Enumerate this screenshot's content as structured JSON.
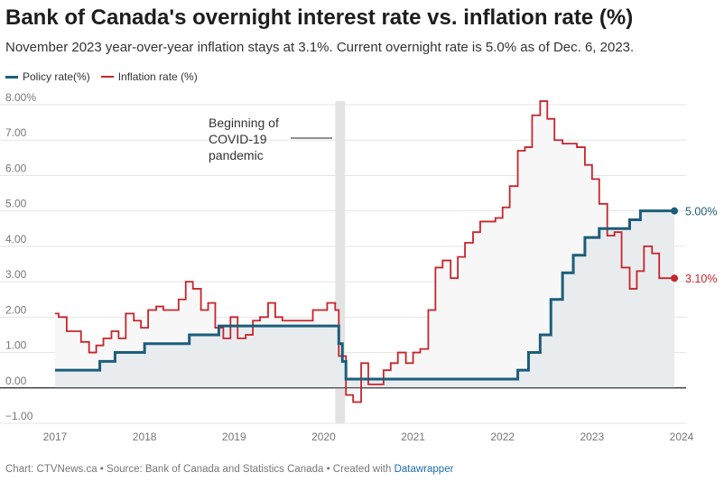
{
  "title": "Bank of Canada's overnight interest rate vs. inflation rate (%)",
  "subtitle": "November 2023 year-over-year inflation stays at 3.1%. Current overnight rate is 5.0% as of Dec. 6, 2023.",
  "footer": {
    "prefix": "Chart: CTVNews.ca • Source: Bank of Canada and Statistics Canada • Created with ",
    "credit": "Datawrapper"
  },
  "colors": {
    "policy": "#1b5e7a",
    "inflation": "#c8242b",
    "area": "#e9ecef",
    "band": "#e3e3e3"
  },
  "chart_data": {
    "type": "line",
    "title": "Bank of Canada's overnight interest rate vs. inflation rate (%)",
    "xlabel": "",
    "ylabel": "",
    "xlim": [
      2017.0,
      2024.0
    ],
    "ylim": [
      -1.0,
      8.0
    ],
    "x_ticks": [
      "2017",
      "2018",
      "2019",
      "2020",
      "2021",
      "2022",
      "2023",
      "2024"
    ],
    "y_ticks": [
      "8.00%",
      "7.00",
      "6.00",
      "5.00",
      "4.00",
      "3.00",
      "2.00",
      "1.00",
      "0.00",
      "−1.00"
    ],
    "grid": "horizontal",
    "legend": "top-left",
    "annotation": {
      "text": [
        "Beginning of",
        "COVID-19",
        "pandemic"
      ],
      "band_x": [
        2020.13,
        2020.24
      ]
    },
    "series": [
      {
        "name": "Policy rate(%)",
        "step": true,
        "end_label": "5.00%",
        "x": [
          2017.0,
          2017.5,
          2017.67,
          2018.0,
          2018.5,
          2018.83,
          2020.17,
          2020.21,
          2020.25,
          2022.17,
          2022.29,
          2022.42,
          2022.54,
          2022.67,
          2022.79,
          2022.92,
          2023.08,
          2023.42,
          2023.54,
          2023.92
        ],
        "values": [
          0.5,
          0.75,
          1.0,
          1.25,
          1.5,
          1.75,
          1.25,
          0.75,
          0.25,
          0.5,
          1.0,
          1.5,
          2.5,
          3.25,
          3.75,
          4.25,
          4.5,
          4.75,
          5.0,
          5.0
        ]
      },
      {
        "name": "Inflation rate (%)",
        "step": true,
        "end_label": "3.10%",
        "x": [
          2017.0,
          2017.04,
          2017.13,
          2017.29,
          2017.38,
          2017.46,
          2017.54,
          2017.63,
          2017.71,
          2017.79,
          2017.88,
          2017.96,
          2018.04,
          2018.13,
          2018.21,
          2018.29,
          2018.38,
          2018.46,
          2018.54,
          2018.63,
          2018.71,
          2018.79,
          2018.88,
          2018.96,
          2019.04,
          2019.13,
          2019.21,
          2019.29,
          2019.38,
          2019.46,
          2019.54,
          2019.63,
          2019.71,
          2019.79,
          2019.88,
          2019.96,
          2020.04,
          2020.13,
          2020.17,
          2020.25,
          2020.33,
          2020.42,
          2020.5,
          2020.58,
          2020.67,
          2020.75,
          2020.83,
          2020.92,
          2021.0,
          2021.08,
          2021.17,
          2021.25,
          2021.33,
          2021.42,
          2021.5,
          2021.58,
          2021.67,
          2021.75,
          2021.83,
          2021.92,
          2022.0,
          2022.08,
          2022.17,
          2022.25,
          2022.33,
          2022.42,
          2022.5,
          2022.58,
          2022.67,
          2022.75,
          2022.83,
          2022.92,
          2023.0,
          2023.08,
          2023.17,
          2023.25,
          2023.33,
          2023.42,
          2023.5,
          2023.58,
          2023.67,
          2023.75,
          2023.83,
          2023.92
        ],
        "values": [
          2.1,
          2.0,
          1.6,
          1.3,
          1.0,
          1.2,
          1.4,
          1.6,
          1.4,
          2.1,
          1.9,
          1.7,
          2.2,
          2.3,
          2.2,
          2.2,
          2.5,
          3.0,
          2.8,
          2.2,
          2.4,
          1.7,
          1.4,
          2.0,
          1.4,
          1.5,
          1.9,
          2.0,
          2.4,
          2.0,
          1.9,
          1.9,
          1.9,
          1.9,
          2.2,
          2.2,
          2.4,
          2.2,
          0.9,
          -0.2,
          -0.4,
          0.7,
          0.1,
          0.1,
          0.5,
          0.7,
          1.0,
          0.7,
          1.0,
          1.1,
          2.2,
          3.4,
          3.6,
          3.1,
          3.7,
          4.1,
          4.4,
          4.7,
          4.7,
          4.8,
          5.1,
          5.7,
          6.7,
          6.8,
          7.7,
          8.1,
          7.6,
          7.0,
          6.9,
          6.9,
          6.8,
          6.3,
          5.9,
          5.2,
          4.3,
          4.4,
          3.4,
          2.8,
          3.3,
          4.0,
          3.8,
          3.1,
          3.1,
          3.1
        ]
      }
    ]
  }
}
